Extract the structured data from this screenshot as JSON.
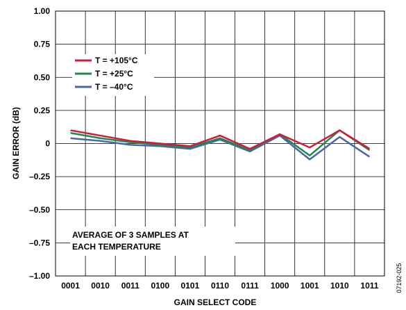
{
  "chart_data": {
    "type": "line",
    "xlabel": "GAIN SELECT CODE",
    "ylabel": "GAIN ERROR (dB)",
    "categories": [
      "0001",
      "0010",
      "0011",
      "0100",
      "0101",
      "0110",
      "0111",
      "1000",
      "1001",
      "1010",
      "1011"
    ],
    "y_ticks": [
      "1.00",
      "0.75",
      "0.50",
      "0.25",
      "0",
      "–0.25",
      "–0.50",
      "–0.75",
      "–1.00"
    ],
    "y_tick_values": [
      1.0,
      0.75,
      0.5,
      0.25,
      0,
      -0.25,
      -0.5,
      -0.75,
      -1.0
    ],
    "ylim": [
      -1.0,
      1.0
    ],
    "grid": true,
    "legend_position": "top-left",
    "series": [
      {
        "name": "T = +105°C",
        "color": "#d11b3c",
        "values": [
          0.1,
          0.06,
          0.02,
          0.0,
          -0.02,
          0.06,
          -0.04,
          0.07,
          -0.03,
          0.1,
          -0.04
        ]
      },
      {
        "name": "T = +25°C",
        "color": "#1e8a4a",
        "values": [
          0.08,
          0.04,
          0.01,
          -0.01,
          -0.03,
          0.04,
          -0.05,
          0.07,
          -0.09,
          0.1,
          -0.05
        ]
      },
      {
        "name": "T = –40°C",
        "color": "#4a64a8",
        "values": [
          0.04,
          0.02,
          -0.01,
          -0.02,
          -0.04,
          0.03,
          -0.06,
          0.06,
          -0.12,
          0.05,
          -0.1
        ]
      }
    ],
    "annotation": [
      "AVERAGE OF 3 SAMPLES AT",
      "EACH TEMPERATURE"
    ]
  },
  "figure_id": "07192-025"
}
